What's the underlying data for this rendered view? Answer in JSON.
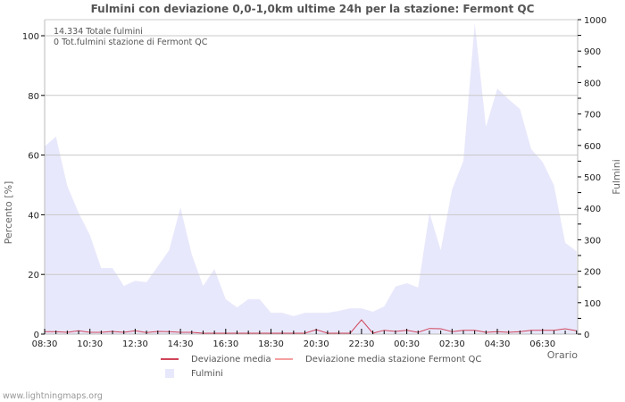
{
  "chart_data": {
    "type": "area",
    "title": "Fulmini con deviazione 0,0-1,0km ultime 24h per la stazione: Fermont QC",
    "xlabel": "Orario",
    "ylabel_left": "Percento   [%]",
    "ylabel_right": "Fulmini",
    "ylim_left": [
      0,
      105
    ],
    "ylim_right": [
      0,
      1000
    ],
    "left_ticks": [
      "0",
      "20",
      "40",
      "60",
      "80",
      "100"
    ],
    "right_ticks": [
      "0",
      "100",
      "200",
      "300",
      "400",
      "500",
      "600",
      "700",
      "800",
      "900",
      "1000"
    ],
    "x_tick_labels": [
      "08:30",
      "10:30",
      "12:30",
      "14:30",
      "16:30",
      "18:30",
      "20:30",
      "22:30",
      "00:30",
      "02:30",
      "04:30",
      "06:30"
    ],
    "x": [
      "08:30",
      "09:00",
      "09:30",
      "10:00",
      "10:30",
      "11:00",
      "11:30",
      "12:00",
      "12:30",
      "13:00",
      "13:30",
      "14:00",
      "14:30",
      "15:00",
      "15:30",
      "16:00",
      "16:30",
      "17:00",
      "17:30",
      "18:00",
      "18:30",
      "19:00",
      "19:30",
      "20:00",
      "20:30",
      "21:00",
      "21:30",
      "22:00",
      "22:30",
      "23:00",
      "23:30",
      "00:00",
      "00:30",
      "01:00",
      "01:30",
      "02:00",
      "02:30",
      "03:00",
      "03:30",
      "04:00",
      "04:30",
      "05:00",
      "05:30",
      "06:00",
      "06:30",
      "07:00",
      "07:30",
      "08:00"
    ],
    "series": [
      {
        "name": "Fulmini",
        "axis": "right",
        "color": "#e8e8fc",
        "values": [
          597,
          628,
          472,
          386,
          315,
          210,
          210,
          153,
          170,
          165,
          216,
          267,
          403,
          253,
          153,
          207,
          111,
          85,
          111,
          111,
          68,
          68,
          57,
          68,
          68,
          68,
          74,
          82,
          82,
          71,
          88,
          151,
          162,
          148,
          386,
          267,
          460,
          551,
          989,
          659,
          781,
          747,
          716,
          588,
          548,
          474,
          290,
          264
        ]
      },
      {
        "name": "Deviazione media",
        "axis": "left",
        "color": "#d0455a",
        "values": [
          0.5,
          0.5,
          0.3,
          0.8,
          0.3,
          0.3,
          0.6,
          0.3,
          0.8,
          0.2,
          0.6,
          0.5,
          0.3,
          0.3,
          0,
          0,
          0,
          0,
          0,
          0,
          0,
          0,
          0,
          0,
          1.2,
          0,
          0,
          0,
          4.5,
          0,
          1,
          0.6,
          1,
          0.3,
          1.6,
          1.5,
          0.5,
          1,
          1,
          0.3,
          0.5,
          0.3,
          0.5,
          1,
          1,
          1,
          1.5,
          0.8
        ]
      },
      {
        "name": "Deviazione media stazione Fermont QC",
        "axis": "left",
        "color": "#f4a0a0",
        "values": []
      }
    ],
    "grid": true,
    "legend_position": "bottom",
    "annotations": [
      "14.334 Totale fulmini",
      "0 Tot.fulmini stazione di Fermont QC"
    ]
  },
  "header": {
    "title": "Fulmini con deviazione 0,0-1,0km ultime 24h per la stazione: Fermont QC"
  },
  "info": {
    "total": "14.334 Totale fulmini",
    "station_total": "0 Tot.fulmini stazione di Fermont QC"
  },
  "legend": {
    "items": [
      {
        "label": "Deviazione media",
        "color": "#d0455a"
      },
      {
        "label": "Deviazione media stazione Fermont QC",
        "color": "#f4a0a0"
      },
      {
        "label": "Fulmini",
        "color": "#e8e8fc"
      }
    ]
  },
  "footer": {
    "credit": "www.lightningmaps.org"
  }
}
